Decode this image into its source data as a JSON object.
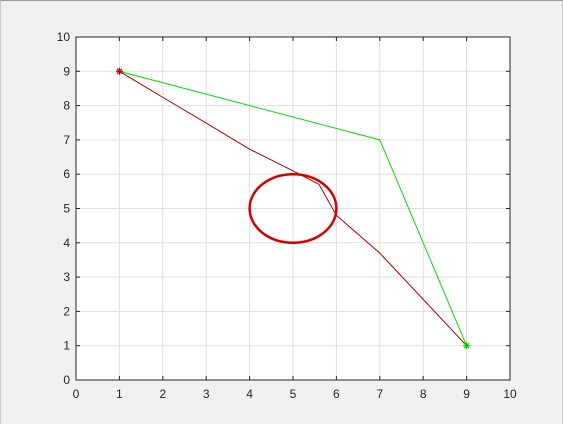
{
  "chart_data": {
    "type": "line",
    "title": "",
    "xlabel": "",
    "ylabel": "",
    "xlim": [
      0,
      10
    ],
    "ylim": [
      0,
      10
    ],
    "xticks": [
      "0",
      "1",
      "2",
      "3",
      "4",
      "5",
      "6",
      "7",
      "8",
      "9",
      "10"
    ],
    "yticks": [
      "0",
      "1",
      "2",
      "3",
      "4",
      "5",
      "6",
      "7",
      "8",
      "9",
      "10"
    ],
    "grid": true,
    "series": [
      {
        "style": "red-path",
        "color": "#b00000",
        "x": [
          1,
          2,
          3,
          4,
          5,
          5.6,
          6,
          7,
          8,
          9
        ],
        "y": [
          9,
          8.24,
          7.49,
          6.73,
          6.1,
          5.7,
          4.8,
          3.7,
          2.35,
          1
        ]
      },
      {
        "style": "green-path",
        "color": "#00dd00",
        "x": [
          1,
          7,
          9
        ],
        "y": [
          9,
          7,
          1
        ]
      },
      {
        "style": "obstacle-circle",
        "color": "#d40000",
        "center": [
          5,
          5
        ],
        "radius": 1
      }
    ],
    "markers": [
      {
        "x": 1,
        "y": 9,
        "symbol": "asterisk",
        "color": "#c00000"
      },
      {
        "x": 9,
        "y": 1,
        "symbol": "asterisk",
        "color": "#00cc00"
      }
    ]
  }
}
